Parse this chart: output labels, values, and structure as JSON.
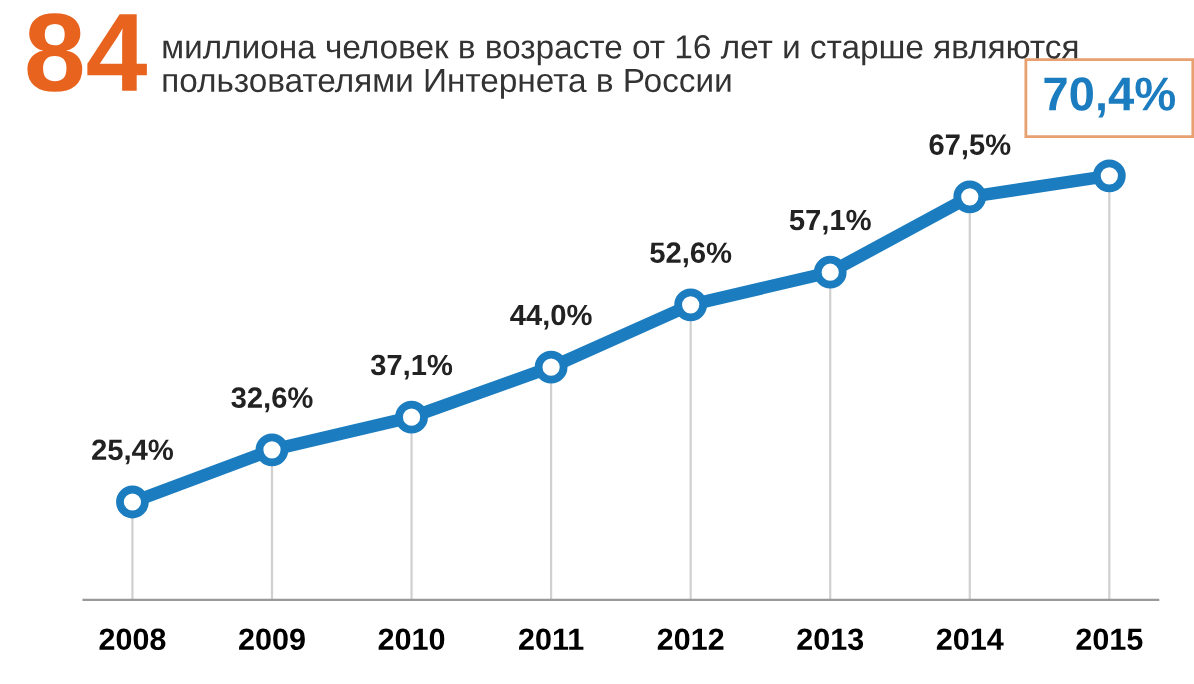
{
  "chart_data": {
    "type": "line",
    "title": "84",
    "subtitle": "миллиона человек в возрасте от 16 лет и старше являются пользователями Интернета в России",
    "categories": [
      "2008",
      "2009",
      "2010",
      "2011",
      "2012",
      "2013",
      "2014",
      "2015"
    ],
    "series": [
      {
        "color": "#1b7dbf",
        "values": [
          25.4,
          32.6,
          37.1,
          44.0,
          52.6,
          57.1,
          67.5,
          70.4
        ],
        "value_labels": [
          "25,4%",
          "32,6%",
          "37,1%",
          "44,0%",
          "52,6%",
          "57,1%",
          "67,5%",
          "70,4%"
        ]
      }
    ],
    "tick_labels": "x",
    "grid": "x",
    "marker": "circle",
    "line_style": "solid"
  }
}
